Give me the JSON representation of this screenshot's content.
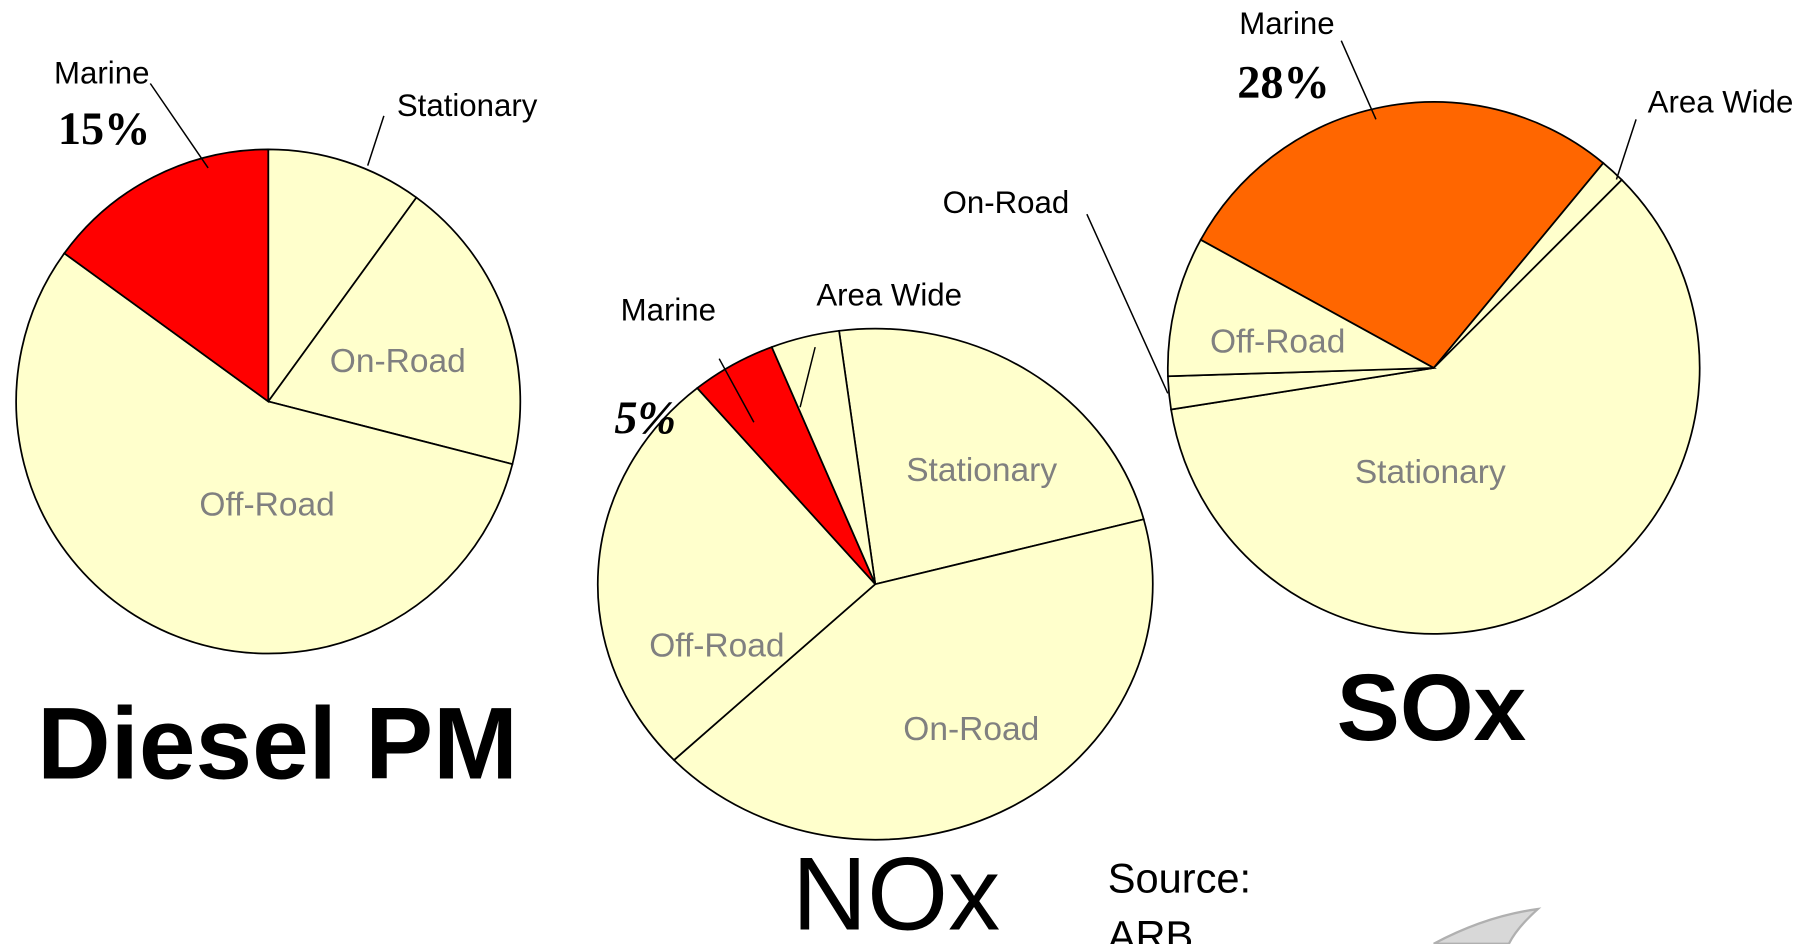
{
  "chart_data": [
    {
      "type": "pie",
      "title": "Diesel PM",
      "categories": [
        "Stationary",
        "On-Road",
        "Off-Road",
        "Marine"
      ],
      "values": [
        10,
        19,
        56,
        15
      ],
      "value_labels": [
        null,
        null,
        null,
        "15%"
      ],
      "colors": [
        "#ffffcc",
        "#ffffcc",
        "#ffffcc",
        "#ff0000"
      ]
    },
    {
      "type": "pie",
      "title": "NOx",
      "categories": [
        "Stationary",
        "On-Road",
        "Off-Road",
        "Marine",
        "Area Wide"
      ],
      "values": [
        23,
        42,
        26,
        5,
        4
      ],
      "value_labels": [
        null,
        null,
        null,
        "5%",
        null
      ],
      "colors": [
        "#ffffcc",
        "#ffffcc",
        "#ffffcc",
        "#ff0000",
        "#ffffcc"
      ]
    },
    {
      "type": "pie",
      "title": "SOx",
      "categories": [
        "Marine",
        "Area Wide",
        "Stationary",
        "On-Road",
        "Off-Road"
      ],
      "values": [
        28,
        1.5,
        60,
        2,
        8.5
      ],
      "value_labels": [
        "28%",
        null,
        null,
        null,
        null
      ],
      "colors": [
        "#ff6600",
        "#ffffcc",
        "#ffffcc",
        "#ffffcc",
        "#ffffcc"
      ]
    }
  ],
  "source_lines": [
    "Source:",
    "ARB"
  ]
}
